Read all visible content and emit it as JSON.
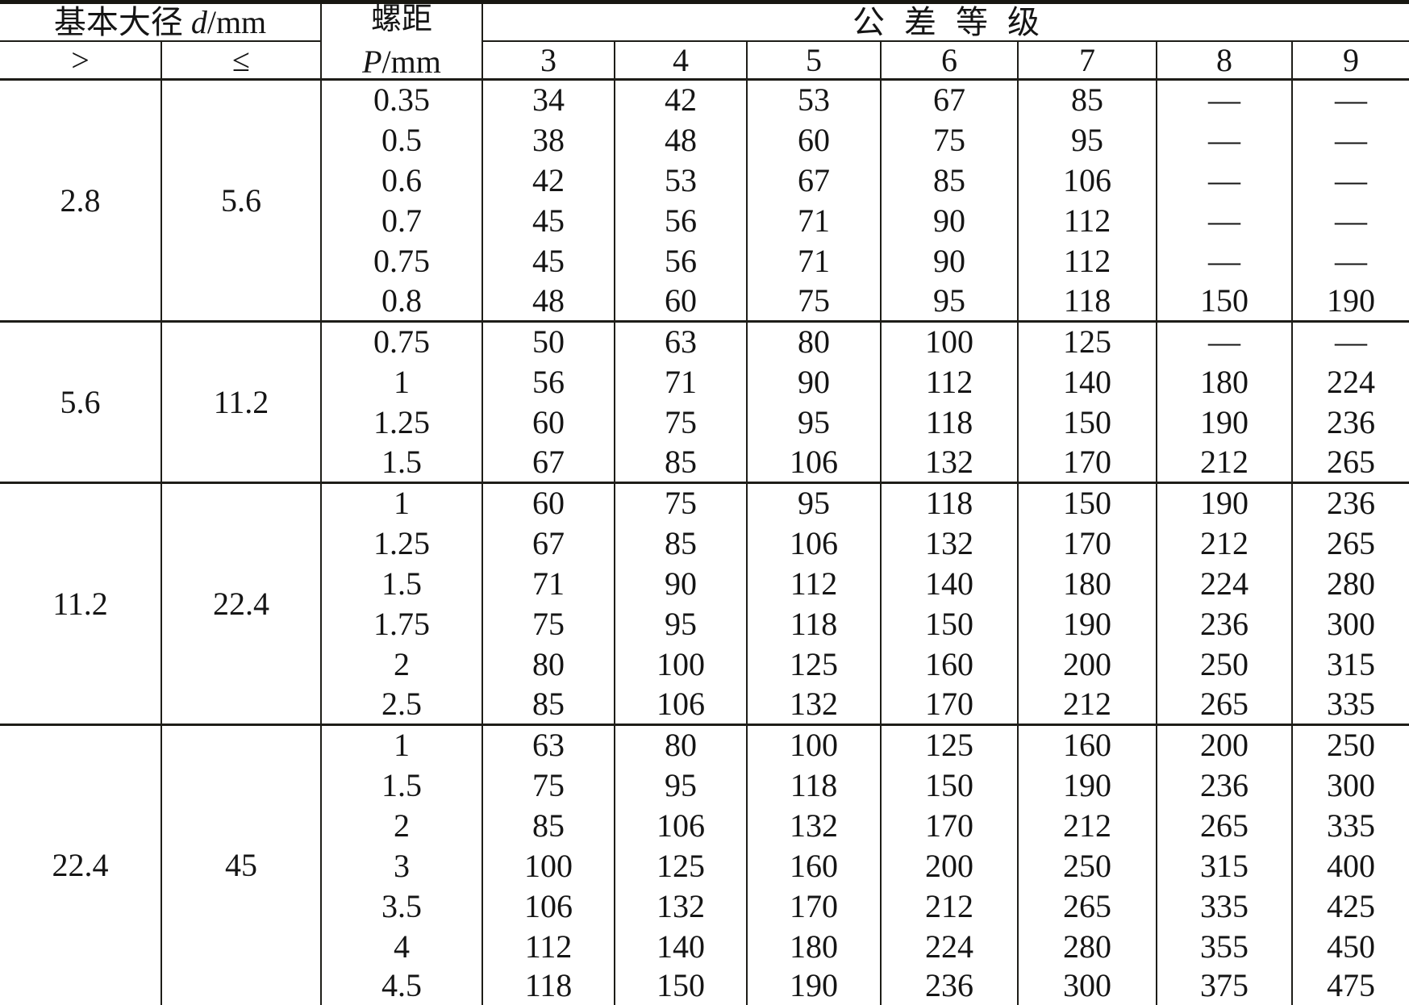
{
  "header": {
    "diameter_title_prefix": "基本大径",
    "diameter_var": "d",
    "diameter_unit": "/mm",
    "gt_symbol": ">",
    "le_symbol": "≤",
    "pitch_title": "螺距",
    "pitch_var": "P",
    "pitch_unit": "/mm",
    "grades_title": "公 差 等 级",
    "grade_cols": [
      "3",
      "4",
      "5",
      "6",
      "7",
      "8",
      "9"
    ]
  },
  "groups": [
    {
      "gt": "2.8",
      "le": "5.6",
      "rows": [
        {
          "pitch": "0.35",
          "values": [
            "34",
            "42",
            "53",
            "67",
            "85",
            "—",
            "—"
          ]
        },
        {
          "pitch": "0.5",
          "values": [
            "38",
            "48",
            "60",
            "75",
            "95",
            "—",
            "—"
          ]
        },
        {
          "pitch": "0.6",
          "values": [
            "42",
            "53",
            "67",
            "85",
            "106",
            "—",
            "—"
          ]
        },
        {
          "pitch": "0.7",
          "values": [
            "45",
            "56",
            "71",
            "90",
            "112",
            "—",
            "—"
          ]
        },
        {
          "pitch": "0.75",
          "values": [
            "45",
            "56",
            "71",
            "90",
            "112",
            "—",
            "—"
          ]
        },
        {
          "pitch": "0.8",
          "values": [
            "48",
            "60",
            "75",
            "95",
            "118",
            "150",
            "190"
          ]
        }
      ]
    },
    {
      "gt": "5.6",
      "le": "11.2",
      "rows": [
        {
          "pitch": "0.75",
          "values": [
            "50",
            "63",
            "80",
            "100",
            "125",
            "—",
            "—"
          ]
        },
        {
          "pitch": "1",
          "values": [
            "56",
            "71",
            "90",
            "112",
            "140",
            "180",
            "224"
          ]
        },
        {
          "pitch": "1.25",
          "values": [
            "60",
            "75",
            "95",
            "118",
            "150",
            "190",
            "236"
          ]
        },
        {
          "pitch": "1.5",
          "values": [
            "67",
            "85",
            "106",
            "132",
            "170",
            "212",
            "265"
          ]
        }
      ]
    },
    {
      "gt": "11.2",
      "le": "22.4",
      "rows": [
        {
          "pitch": "1",
          "values": [
            "60",
            "75",
            "95",
            "118",
            "150",
            "190",
            "236"
          ]
        },
        {
          "pitch": "1.25",
          "values": [
            "67",
            "85",
            "106",
            "132",
            "170",
            "212",
            "265"
          ]
        },
        {
          "pitch": "1.5",
          "values": [
            "71",
            "90",
            "112",
            "140",
            "180",
            "224",
            "280"
          ]
        },
        {
          "pitch": "1.75",
          "values": [
            "75",
            "95",
            "118",
            "150",
            "190",
            "236",
            "300"
          ]
        },
        {
          "pitch": "2",
          "values": [
            "80",
            "100",
            "125",
            "160",
            "200",
            "250",
            "315"
          ]
        },
        {
          "pitch": "2.5",
          "values": [
            "85",
            "106",
            "132",
            "170",
            "212",
            "265",
            "335"
          ]
        }
      ]
    },
    {
      "gt": "22.4",
      "le": "45",
      "rows": [
        {
          "pitch": "1",
          "values": [
            "63",
            "80",
            "100",
            "125",
            "160",
            "200",
            "250"
          ]
        },
        {
          "pitch": "1.5",
          "values": [
            "75",
            "95",
            "118",
            "150",
            "190",
            "236",
            "300"
          ]
        },
        {
          "pitch": "2",
          "values": [
            "85",
            "106",
            "132",
            "170",
            "212",
            "265",
            "335"
          ]
        },
        {
          "pitch": "3",
          "values": [
            "100",
            "125",
            "160",
            "200",
            "250",
            "315",
            "400"
          ]
        },
        {
          "pitch": "3.5",
          "values": [
            "106",
            "132",
            "170",
            "212",
            "265",
            "335",
            "425"
          ]
        },
        {
          "pitch": "4",
          "values": [
            "112",
            "140",
            "180",
            "224",
            "280",
            "355",
            "450"
          ]
        },
        {
          "pitch": "4.5",
          "values": [
            "118",
            "150",
            "190",
            "236",
            "300",
            "375",
            "475"
          ]
        }
      ]
    }
  ]
}
